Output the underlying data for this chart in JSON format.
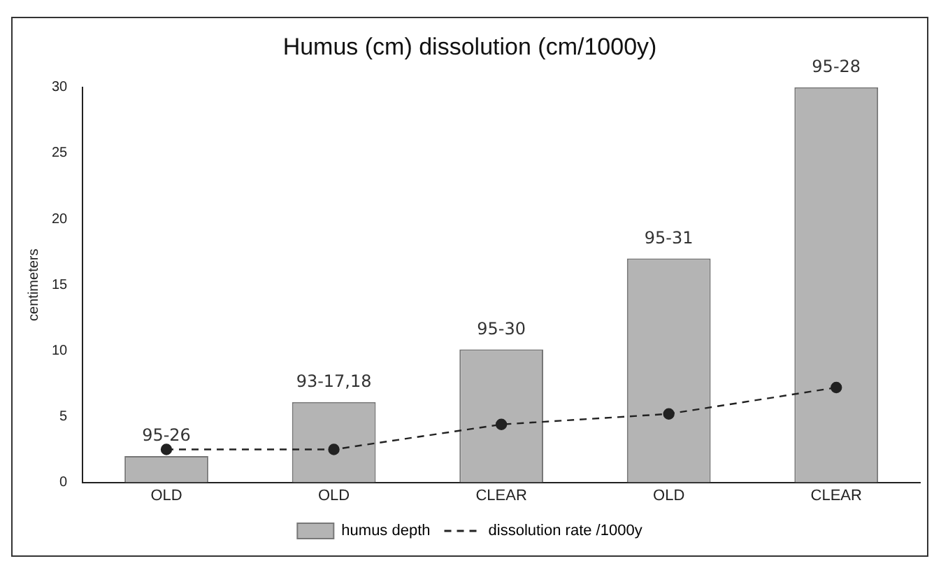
{
  "chart_data": {
    "type": "bar",
    "title": "Humus (cm) dissolution (cm/1000y)",
    "ylabel": "centimeters",
    "categories": [
      "OLD",
      "OLD",
      "CLEAR",
      "OLD",
      "CLEAR"
    ],
    "series": [
      {
        "name": "humus depth",
        "color": "#b4b4b4",
        "values": [
          2,
          6.1,
          10.1,
          17,
          30
        ],
        "value_labels": [
          "95-26",
          "93-17,18",
          "95-30",
          "95-31",
          "95-28"
        ]
      },
      {
        "name": "dissolution rate /1000y",
        "type": "line",
        "color": "#222222",
        "values": [
          2.5,
          2.5,
          4.4,
          5.2,
          7.2
        ],
        "marker": "circle",
        "line_style": "dashed"
      }
    ],
    "ylim": [
      0,
      30
    ],
    "yticks": [
      0,
      5,
      10,
      15,
      20,
      25,
      30
    ],
    "grid": false,
    "legend": "bottom"
  }
}
